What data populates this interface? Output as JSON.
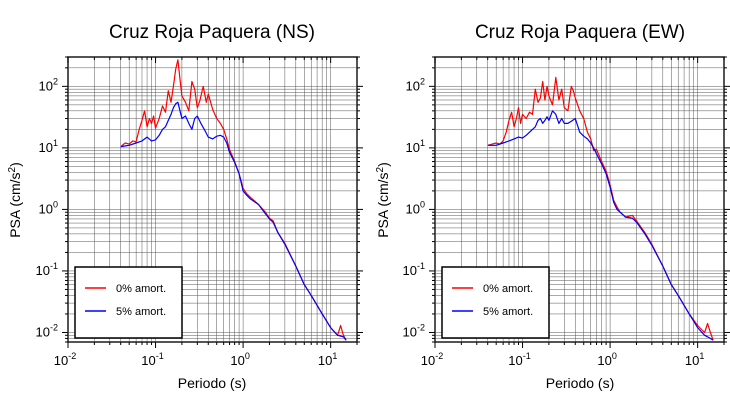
{
  "chart_data": [
    {
      "type": "line",
      "title": "Cruz Roja Paquera (NS)",
      "xlabel": "Periodo (s)",
      "ylabel": "PSA (cm/s²)",
      "x_scale": "log",
      "y_scale": "log",
      "xlim": [
        0.01,
        20
      ],
      "ylim": [
        0.007,
        300
      ],
      "x_ticks": [
        0.01,
        0.1,
        1,
        10
      ],
      "x_tick_labels": [
        [
          "10",
          "-2"
        ],
        [
          "10",
          "-1"
        ],
        [
          "10",
          "0"
        ],
        [
          "10",
          "1"
        ]
      ],
      "y_ticks": [
        0.01,
        0.1,
        1,
        10,
        100
      ],
      "y_tick_labels": [
        [
          "10",
          "-2"
        ],
        [
          "10",
          "-1"
        ],
        [
          "10",
          "0"
        ],
        [
          "10",
          "1"
        ],
        [
          "10",
          "2"
        ]
      ],
      "grid": true,
      "legend_position": "bottom-left",
      "series": [
        {
          "name": "0% amort.",
          "color": "#ff0000",
          "x": [
            0.04,
            0.045,
            0.05,
            0.055,
            0.06,
            0.065,
            0.07,
            0.075,
            0.08,
            0.085,
            0.09,
            0.095,
            0.1,
            0.11,
            0.12,
            0.13,
            0.14,
            0.15,
            0.16,
            0.17,
            0.18,
            0.19,
            0.2,
            0.22,
            0.24,
            0.26,
            0.28,
            0.3,
            0.32,
            0.35,
            0.38,
            0.4,
            0.45,
            0.5,
            0.55,
            0.6,
            0.65,
            0.7,
            0.8,
            0.9,
            1.0,
            1.1,
            1.2,
            1.5,
            1.8,
            2.0,
            2.2,
            2.5,
            3,
            4,
            5,
            6,
            8,
            10,
            12,
            13,
            14,
            15
          ],
          "y": [
            10.5,
            12,
            11.5,
            13,
            12.5,
            20,
            28,
            40,
            22,
            30,
            25,
            33,
            21,
            30,
            48,
            38,
            85,
            55,
            100,
            190,
            270,
            130,
            70,
            55,
            40,
            120,
            90,
            45,
            58,
            100,
            55,
            75,
            42,
            30,
            25,
            20,
            14,
            9.5,
            6,
            3.8,
            2.2,
            1.8,
            1.6,
            1.2,
            0.9,
            0.72,
            0.65,
            0.42,
            0.28,
            0.12,
            0.06,
            0.04,
            0.02,
            0.012,
            0.009,
            0.013,
            0.009,
            0.0075
          ]
        },
        {
          "name": "5% amort.",
          "color": "#0000ff",
          "x": [
            0.04,
            0.05,
            0.06,
            0.07,
            0.08,
            0.09,
            0.1,
            0.11,
            0.12,
            0.13,
            0.14,
            0.15,
            0.16,
            0.17,
            0.18,
            0.19,
            0.2,
            0.22,
            0.24,
            0.26,
            0.28,
            0.3,
            0.33,
            0.36,
            0.4,
            0.45,
            0.5,
            0.55,
            0.6,
            0.65,
            0.7,
            0.8,
            0.9,
            1.0,
            1.1,
            1.2,
            1.5,
            1.8,
            2.0,
            2.2,
            2.5,
            3,
            4,
            5,
            6,
            8,
            10,
            12,
            14,
            15
          ],
          "y": [
            10.5,
            11,
            12,
            13,
            15,
            13,
            13.5,
            16,
            20,
            22,
            28,
            35,
            45,
            52,
            55,
            40,
            30,
            33,
            25,
            20,
            30,
            33,
            25,
            20,
            15,
            14,
            15.5,
            16,
            15,
            12,
            8.5,
            5.8,
            3.8,
            2.0,
            1.7,
            1.5,
            1.2,
            0.85,
            0.7,
            0.62,
            0.42,
            0.27,
            0.12,
            0.06,
            0.04,
            0.02,
            0.012,
            0.009,
            0.0085,
            0.0075
          ]
        }
      ]
    },
    {
      "type": "line",
      "title": "Cruz Roja Paquera (EW)",
      "xlabel": "Periodo (s)",
      "ylabel": "PSA (cm/s²)",
      "x_scale": "log",
      "y_scale": "log",
      "xlim": [
        0.01,
        20
      ],
      "ylim": [
        0.007,
        300
      ],
      "x_ticks": [
        0.01,
        0.1,
        1,
        10
      ],
      "x_tick_labels": [
        [
          "10",
          "-2"
        ],
        [
          "10",
          "-1"
        ],
        [
          "10",
          "0"
        ],
        [
          "10",
          "1"
        ]
      ],
      "y_ticks": [
        0.01,
        0.1,
        1,
        10,
        100
      ],
      "y_tick_labels": [
        [
          "10",
          "-2"
        ],
        [
          "10",
          "-1"
        ],
        [
          "10",
          "0"
        ],
        [
          "10",
          "1"
        ],
        [
          "10",
          "2"
        ]
      ],
      "grid": true,
      "legend_position": "bottom-left",
      "series": [
        {
          "name": "0% amort.",
          "color": "#ff0000",
          "x": [
            0.04,
            0.045,
            0.05,
            0.055,
            0.06,
            0.065,
            0.07,
            0.075,
            0.08,
            0.085,
            0.09,
            0.095,
            0.1,
            0.11,
            0.12,
            0.13,
            0.14,
            0.15,
            0.16,
            0.17,
            0.18,
            0.19,
            0.2,
            0.22,
            0.24,
            0.26,
            0.28,
            0.3,
            0.33,
            0.36,
            0.38,
            0.4,
            0.45,
            0.5,
            0.55,
            0.6,
            0.65,
            0.7,
            0.8,
            0.9,
            1.0,
            1.1,
            1.2,
            1.3,
            1.5,
            1.8,
            2.0,
            2.5,
            3,
            4,
            5,
            6,
            8,
            10,
            12,
            13,
            14,
            15
          ],
          "y": [
            11,
            11.5,
            12,
            11.5,
            13,
            18,
            28,
            38,
            22,
            30,
            45,
            25,
            35,
            30,
            38,
            35,
            90,
            55,
            65,
            120,
            60,
            100,
            70,
            50,
            140,
            60,
            90,
            45,
            40,
            100,
            85,
            65,
            40,
            30,
            18,
            14,
            9,
            9.5,
            6,
            4.2,
            2.5,
            1.4,
            1.1,
            0.9,
            0.75,
            0.8,
            0.65,
            0.42,
            0.27,
            0.12,
            0.06,
            0.04,
            0.02,
            0.013,
            0.01,
            0.014,
            0.01,
            0.0075
          ]
        },
        {
          "name": "5% amort.",
          "color": "#0000ff",
          "x": [
            0.04,
            0.05,
            0.06,
            0.07,
            0.08,
            0.09,
            0.1,
            0.11,
            0.12,
            0.13,
            0.14,
            0.15,
            0.16,
            0.17,
            0.18,
            0.19,
            0.2,
            0.22,
            0.24,
            0.26,
            0.28,
            0.3,
            0.33,
            0.36,
            0.4,
            0.45,
            0.5,
            0.55,
            0.6,
            0.65,
            0.7,
            0.8,
            0.9,
            1.0,
            1.1,
            1.2,
            1.5,
            1.8,
            2.0,
            2.5,
            3,
            4,
            5,
            6,
            8,
            10,
            12,
            14,
            15
          ],
          "y": [
            11,
            11,
            12,
            13,
            14,
            15,
            14.5,
            16,
            18,
            20,
            22,
            28,
            30,
            25,
            28,
            32,
            28,
            40,
            35,
            25,
            30,
            25,
            25,
            27,
            30,
            18,
            15.5,
            14,
            12,
            10,
            8,
            5.5,
            3.8,
            2.3,
            1.3,
            1.0,
            0.75,
            0.72,
            0.62,
            0.4,
            0.26,
            0.12,
            0.06,
            0.04,
            0.02,
            0.012,
            0.009,
            0.008,
            0.0075
          ]
        }
      ]
    }
  ]
}
